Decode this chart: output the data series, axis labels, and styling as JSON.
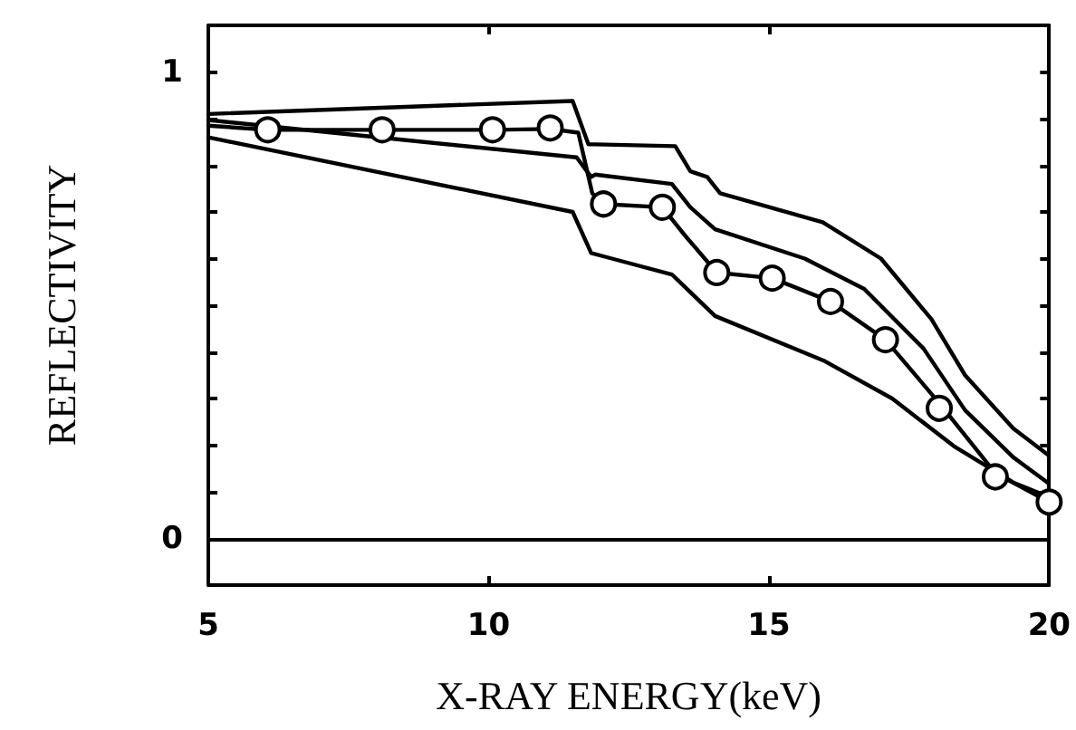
{
  "chart_data": {
    "type": "line",
    "xlabel": "X-RAY ENERGY(keV)",
    "ylabel": "REFLECTIVITY",
    "xlim": [
      5,
      20
    ],
    "xticks": [
      5,
      10,
      15,
      20
    ],
    "ylim": [
      -0.1,
      1.1
    ],
    "yticks": [
      0,
      {
        "value": 0.1,
        "label": null
      },
      {
        "value": 0.2,
        "label": null
      },
      {
        "value": 0.3,
        "label": null
      },
      {
        "value": 0.4,
        "label": null
      },
      {
        "value": 0.5,
        "label": null
      },
      {
        "value": 0.6,
        "label": null
      },
      {
        "value": 0.7,
        "label": null
      },
      {
        "value": 0.8,
        "label": null
      },
      {
        "value": 0.9,
        "label": null
      },
      1
    ],
    "grid": false,
    "line_style": "solid",
    "marker": "none",
    "ref_lines": [
      {
        "axis": "y",
        "value": 0,
        "color": "#000000"
      }
    ],
    "series": [
      {
        "color": "#000000",
        "x": [
          5,
          11.5,
          11.78,
          11.9,
          13.33,
          13.6,
          13.9,
          14.13,
          15.96,
          17.0,
          17.9,
          18.5,
          19.36,
          19.97
        ],
        "values": [
          0.91,
          0.938,
          0.845,
          0.845,
          0.841,
          0.787,
          0.775,
          0.74,
          0.678,
          0.6,
          0.47,
          0.35,
          0.236,
          0.18
        ]
      },
      {
        "color": "#000000",
        "x": [
          5,
          11.57,
          11.83,
          11.9,
          13.27,
          13.6,
          14.04,
          15.64,
          16.7,
          17.76,
          18.5,
          19.36,
          19.97
        ],
        "values": [
          0.897,
          0.817,
          0.775,
          0.78,
          0.76,
          0.71,
          0.663,
          0.6,
          0.535,
          0.407,
          0.275,
          0.174,
          0.12
        ]
      },
      {
        "color": "#000000",
        "x": [
          5,
          6.06,
          8.1,
          10.07,
          11.1,
          11.6,
          11.85,
          12.05,
          13.1,
          13.5,
          14.07,
          15.06,
          16.1,
          17.08,
          18.04,
          19.04,
          20
        ],
        "values": [
          0.885,
          0.876,
          0.876,
          0.876,
          0.878,
          0.87,
          0.74,
          0.717,
          0.71,
          0.65,
          0.57,
          0.558,
          0.508,
          0.426,
          0.29,
          0.14,
          0.078
        ]
      },
      {
        "color": "#000000",
        "x": [
          5,
          11.5,
          11.83,
          12.2,
          13.27,
          14.04,
          16,
          17.2,
          18.3,
          19.36,
          19.97
        ],
        "values": [
          0.86,
          0.7,
          0.612,
          0.6,
          0.566,
          0.477,
          0.38,
          0.3,
          0.198,
          0.12,
          0.09
        ]
      },
      {
        "type": "scatter",
        "marker": "circle",
        "color": "#000000",
        "x": [
          6.06,
          8.1,
          10.07,
          11.1,
          12.05,
          13.1,
          14.07,
          15.06,
          16.1,
          17.08,
          18.04,
          19.04,
          20
        ],
        "values": [
          0.876,
          0.876,
          0.876,
          0.88,
          0.717,
          0.71,
          0.57,
          0.558,
          0.508,
          0.426,
          0.279,
          0.132,
          0.078
        ]
      }
    ]
  }
}
